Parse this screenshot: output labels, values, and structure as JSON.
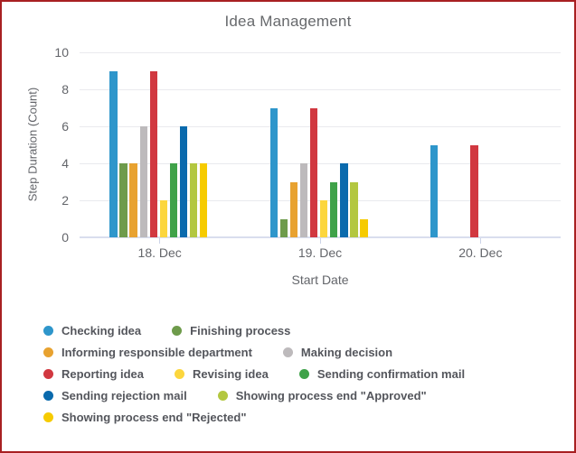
{
  "frame": {
    "border_color": "#a82022",
    "background": "#ffffff"
  },
  "chart_data": {
    "type": "bar",
    "title": "Idea Management",
    "xlabel": "Start Date",
    "ylabel": "Step Duration (Count)",
    "categories": [
      "18. Dec",
      "19. Dec",
      "20. Dec"
    ],
    "y_ticks": [
      0,
      2,
      4,
      6,
      8,
      10
    ],
    "ylim": [
      0,
      10
    ],
    "grid": true,
    "legend_position": "bottom",
    "series": [
      {
        "name": "Checking idea",
        "color": "#2e96cb",
        "values": [
          9,
          7,
          5
        ]
      },
      {
        "name": "Finishing process",
        "color": "#6e9b4b",
        "values": [
          4,
          1,
          0
        ]
      },
      {
        "name": "Informing responsible department",
        "color": "#e8a230",
        "values": [
          4,
          3,
          0
        ]
      },
      {
        "name": "Making decision",
        "color": "#bdbabc",
        "values": [
          6,
          4,
          0
        ]
      },
      {
        "name": "Reporting idea",
        "color": "#d13840",
        "values": [
          9,
          7,
          5
        ]
      },
      {
        "name": "Revising idea",
        "color": "#fcd63d",
        "values": [
          2,
          2,
          0
        ]
      },
      {
        "name": "Sending confirmation mail",
        "color": "#3fa249",
        "values": [
          4,
          3,
          0
        ]
      },
      {
        "name": "Sending rejection mail",
        "color": "#0a6aad",
        "values": [
          6,
          4,
          0
        ]
      },
      {
        "name": "Showing process end \"Approved\"",
        "color": "#b3c740",
        "values": [
          4,
          3,
          0
        ]
      },
      {
        "name": "Showing process end \"Rejected\"",
        "color": "#f6cb00",
        "values": [
          4,
          1,
          0
        ]
      }
    ],
    "legend_rows": [
      [
        0,
        1
      ],
      [
        2,
        3
      ],
      [
        4,
        5,
        6
      ],
      [
        7,
        8
      ],
      [
        9
      ]
    ]
  },
  "style": {
    "gridline_color": "#e9eaee",
    "axis_line_color": "#d9deee",
    "text_color": "#63656a",
    "title_color": "#67696c",
    "legend_text_color": "#54565c"
  }
}
